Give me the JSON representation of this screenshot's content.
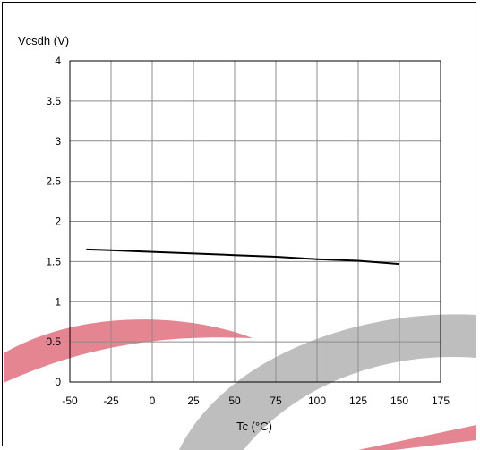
{
  "chart_data": {
    "type": "line",
    "xlabel": "Tc (°C)",
    "ylabel": "Vcsdh (V)",
    "xlim": [
      -50,
      175
    ],
    "ylim": [
      0,
      4
    ],
    "x_ticks": [
      -50,
      -25,
      0,
      25,
      50,
      75,
      100,
      125,
      150,
      175
    ],
    "y_ticks": [
      0,
      0.5,
      1,
      1.5,
      2,
      2.5,
      3,
      3.5,
      4
    ],
    "x_tick_labels": [
      "-50",
      "-25",
      "0",
      "25",
      "50",
      "75",
      "100",
      "125",
      "150",
      "175"
    ],
    "y_tick_labels": [
      "0",
      "0.5",
      "1",
      "1.5",
      "2",
      "2.5",
      "3",
      "3.5",
      "4"
    ],
    "grid": true,
    "series": [
      {
        "x": [
          -40,
          -25,
          0,
          25,
          50,
          75,
          100,
          125,
          150
        ],
        "y": [
          1.65,
          1.64,
          1.62,
          1.6,
          1.58,
          1.56,
          1.53,
          1.51,
          1.47
        ],
        "color": "#000000"
      }
    ]
  },
  "colors": {
    "watermark_red": "#e0707e",
    "watermark_gray": "#b3b3b3"
  }
}
